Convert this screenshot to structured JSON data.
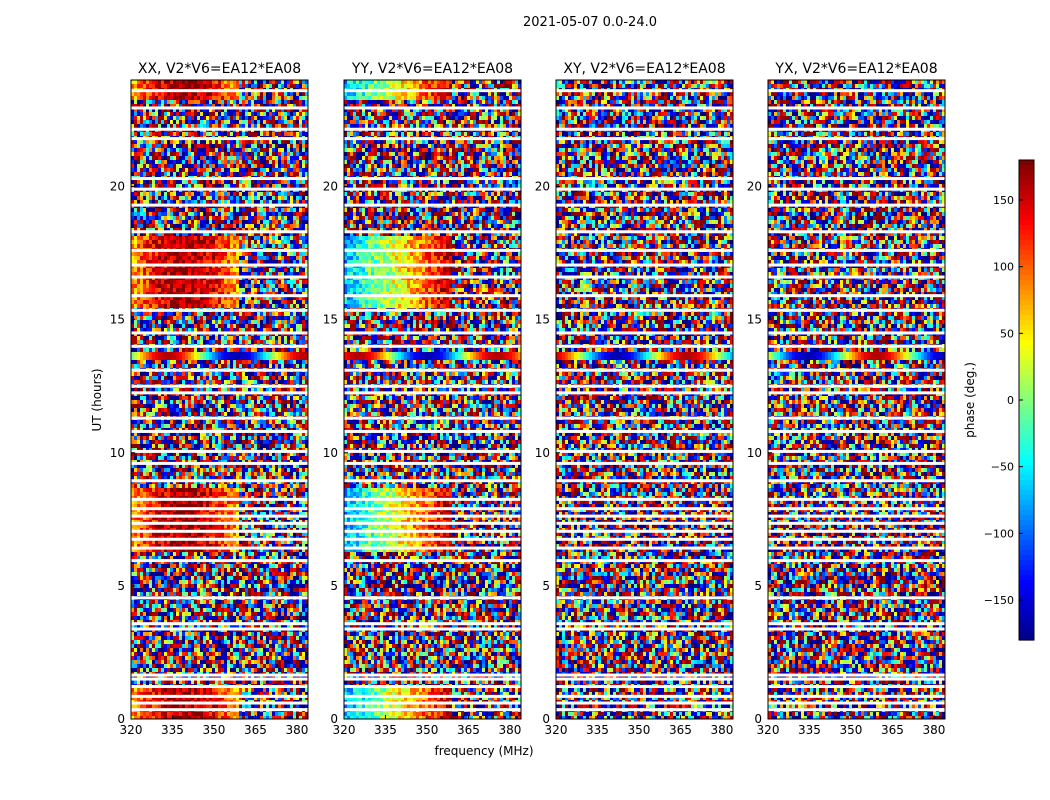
{
  "figure": {
    "suptitle": "2021-05-07 0.0-24.0"
  },
  "chart_data": {
    "type": "heatmap",
    "xlabel": "frequency (MHz)",
    "ylabel": "UT (hours)",
    "xlim": [
      320,
      384
    ],
    "ylim": [
      0,
      24
    ],
    "x_ticks": [
      320,
      335,
      350,
      365,
      380
    ],
    "y_ticks": [
      0,
      5,
      10,
      15,
      20
    ],
    "panels": [
      {
        "title": "XX, V2*V6=EA12*EA08",
        "pol": "XX",
        "coherent": true
      },
      {
        "title": "YY, V2*V6=EA12*EA08",
        "pol": "YY",
        "coherent": true
      },
      {
        "title": "XY, V2*V6=EA12*EA08",
        "pol": "XY",
        "coherent": false
      },
      {
        "title": "YX, V2*V6=EA12*EA08",
        "pol": "YX",
        "coherent": false
      }
    ],
    "colorbar": {
      "label": "phase (deg.)",
      "min": -180,
      "max": 180,
      "ticks": [
        150,
        100,
        50,
        0,
        -50,
        -100,
        -150
      ],
      "tick_labels": [
        "150",
        "100",
        "50",
        "0",
        "−50",
        "−100",
        "−150"
      ],
      "colormap": "jet"
    },
    "flagged_gaps_ut_hours": [
      0.35,
      0.6,
      0.85,
      1.22,
      1.5,
      1.65,
      3.38,
      3.58,
      4.55,
      5.95,
      6.42,
      6.75,
      7.05,
      7.35,
      7.62,
      7.9,
      8.25,
      8.95,
      9.6,
      10.05,
      10.8,
      11.3,
      12.25,
      12.5,
      13.1,
      14.0,
      14.5,
      15.35,
      15.9,
      16.6,
      17.05,
      17.6,
      18.3,
      19.3,
      19.9,
      20.3,
      21.8,
      22.15,
      22.95,
      23.6
    ]
  }
}
